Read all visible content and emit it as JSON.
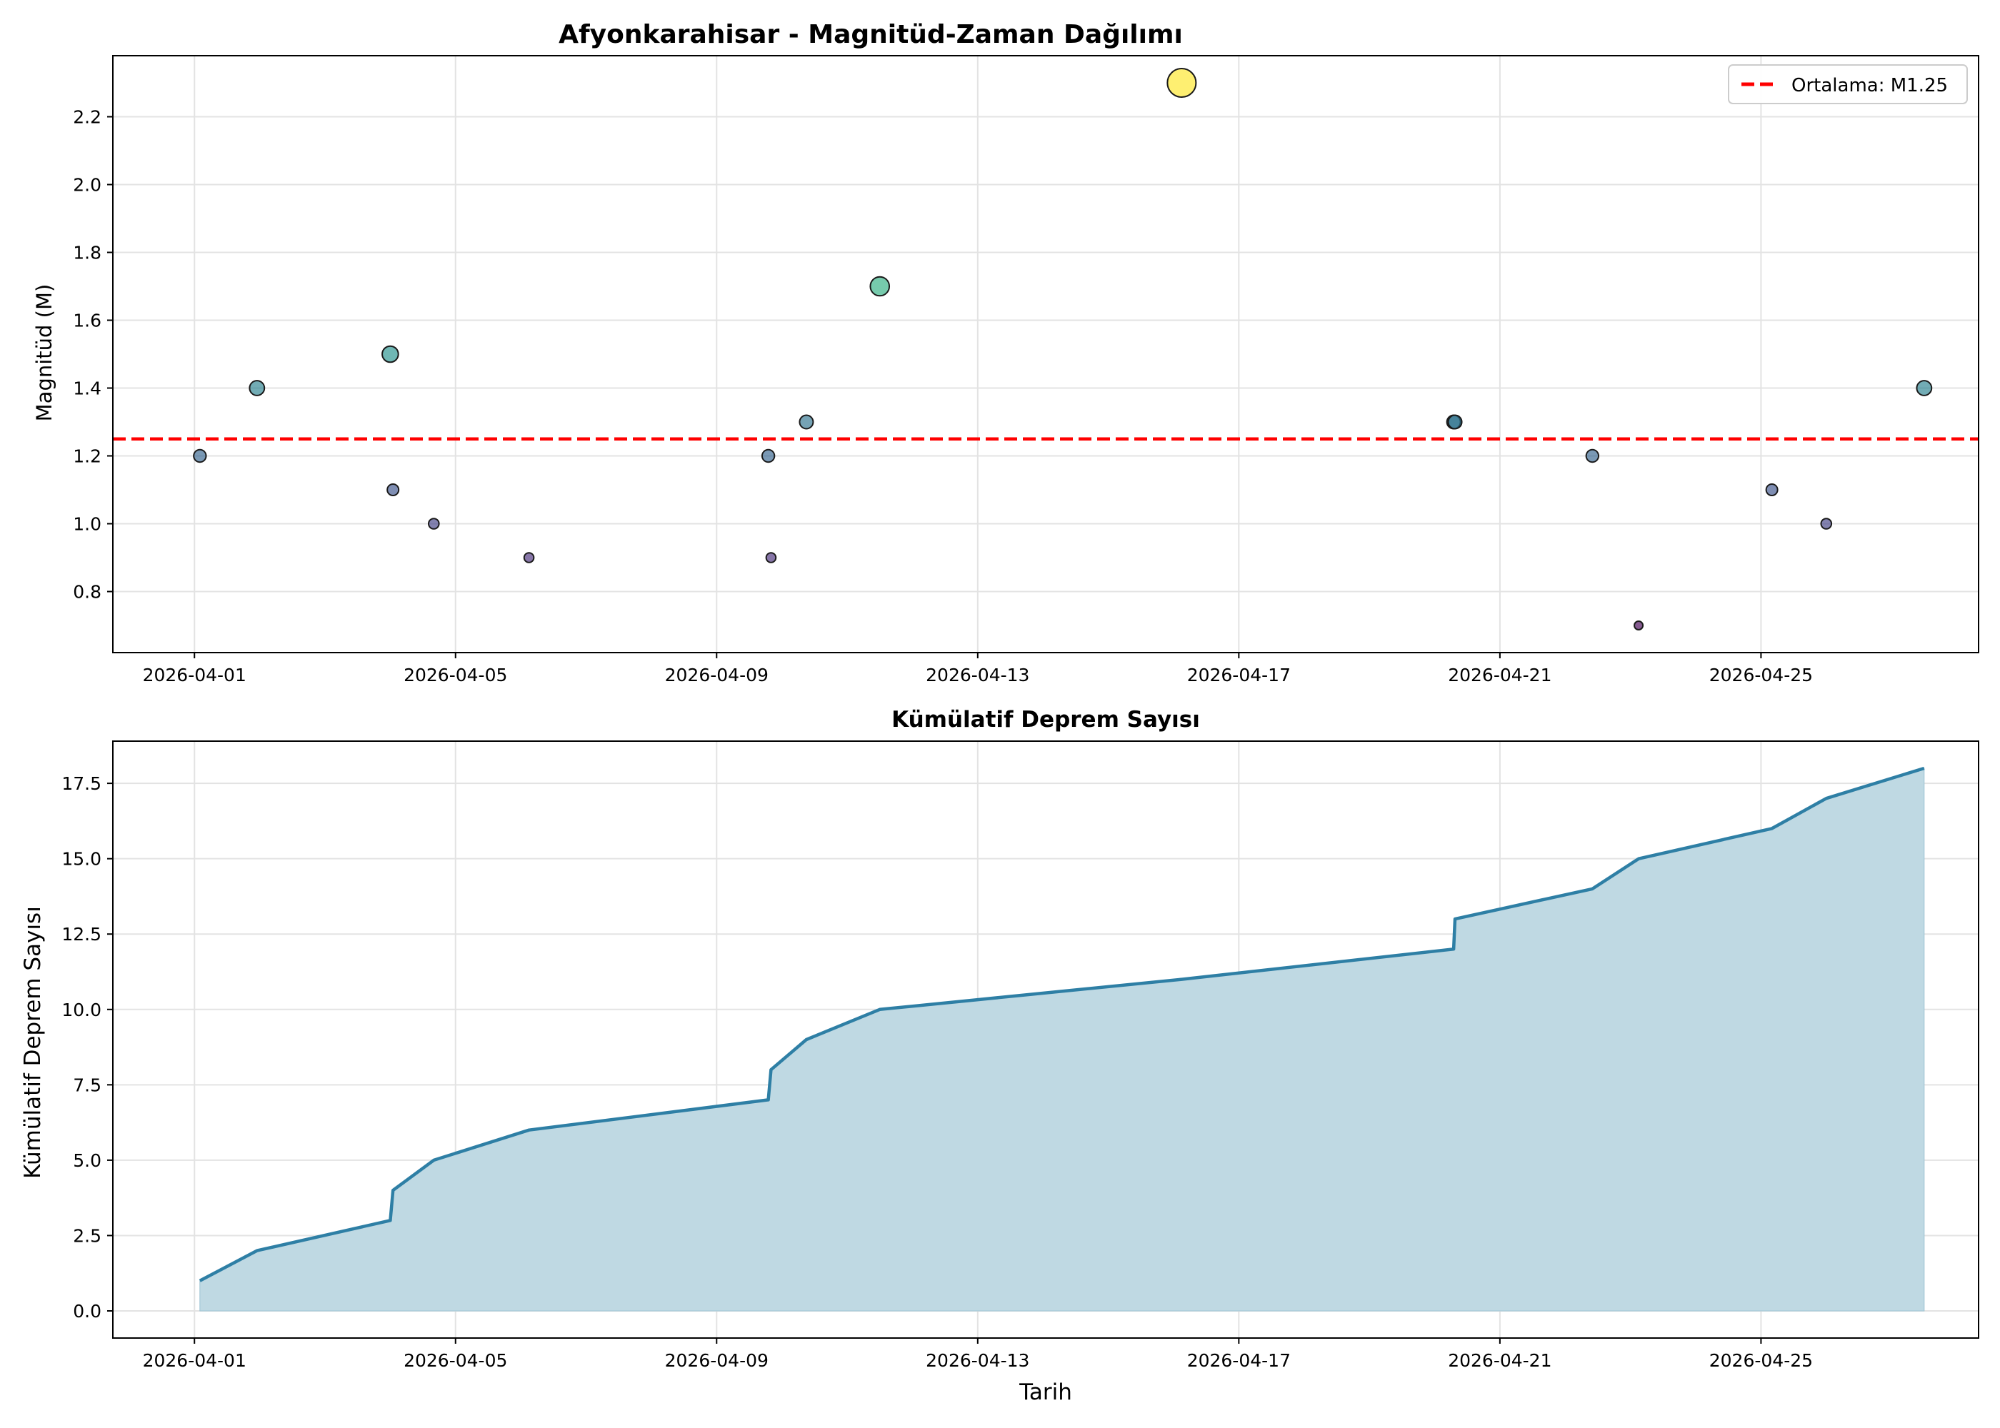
{
  "chart_data": [
    {
      "type": "scatter",
      "title": "Afyonkarahisar - Magnitüd-Zaman Dağılımı",
      "xlabel": "",
      "ylabel": "Magnitüd (M)",
      "x_ticks": [
        "2026-04-01",
        "2026-04-05",
        "2026-04-09",
        "2026-04-13",
        "2026-04-17",
        "2026-04-21",
        "2026-04-25"
      ],
      "y_ticks": [
        "0.8",
        "1.0",
        "1.2",
        "1.4",
        "1.6",
        "1.8",
        "2.0",
        "2.2"
      ],
      "xlim": [
        "2026-03-30T18:00",
        "2026-04-28T08:00"
      ],
      "ylim": [
        0.62,
        2.38
      ],
      "grid": true,
      "legend_position": "top-right",
      "colormap": "viridis",
      "color_range": [
        0.7,
        2.3
      ],
      "points": [
        {
          "x": "2026-04-01T02:00",
          "y": 1.2
        },
        {
          "x": "2026-04-01T23:00",
          "y": 1.4
        },
        {
          "x": "2026-04-04T00:00",
          "y": 1.5
        },
        {
          "x": "2026-04-04T01:00",
          "y": 1.1
        },
        {
          "x": "2026-04-04T16:00",
          "y": 1.0
        },
        {
          "x": "2026-04-06T03:00",
          "y": 0.9
        },
        {
          "x": "2026-04-09T19:00",
          "y": 1.2
        },
        {
          "x": "2026-04-09T20:00",
          "y": 0.9
        },
        {
          "x": "2026-04-10T09:00",
          "y": 1.3
        },
        {
          "x": "2026-04-11T12:00",
          "y": 1.7
        },
        {
          "x": "2026-04-16T03:00",
          "y": 2.3
        },
        {
          "x": "2026-04-20T07:00",
          "y": 1.3
        },
        {
          "x": "2026-04-20T07:30",
          "y": 1.3
        },
        {
          "x": "2026-04-22T10:00",
          "y": 1.2
        },
        {
          "x": "2026-04-23T03:00",
          "y": 0.7
        },
        {
          "x": "2026-04-25T04:00",
          "y": 1.1
        },
        {
          "x": "2026-04-26T00:00",
          "y": 1.0
        },
        {
          "x": "2026-04-27T12:00",
          "y": 1.4
        }
      ],
      "mean_line": {
        "value": 1.25,
        "label": "Ortalama: M1.25",
        "color": "#ff0000"
      }
    },
    {
      "type": "area",
      "title": "Kümülatif Deprem Sayısı",
      "xlabel": "Tarih",
      "ylabel": "Kümülatif Deprem Sayısı",
      "x_ticks": [
        "2026-04-01",
        "2026-04-05",
        "2026-04-09",
        "2026-04-13",
        "2026-04-17",
        "2026-04-21",
        "2026-04-25"
      ],
      "y_ticks": [
        "0.0",
        "2.5",
        "5.0",
        "7.5",
        "10.0",
        "12.5",
        "15.0",
        "17.5"
      ],
      "xlim": [
        "2026-03-30T18:00",
        "2026-04-28T08:00"
      ],
      "ylim": [
        -0.9,
        18.9
      ],
      "grid": true,
      "line_color": "#2e7fa5",
      "fill_color": "#bfd9e3",
      "points": [
        {
          "x": "2026-04-01T02:00",
          "y": 1
        },
        {
          "x": "2026-04-01T23:00",
          "y": 2
        },
        {
          "x": "2026-04-04T00:00",
          "y": 3
        },
        {
          "x": "2026-04-04T01:00",
          "y": 4
        },
        {
          "x": "2026-04-04T16:00",
          "y": 5
        },
        {
          "x": "2026-04-06T03:00",
          "y": 6
        },
        {
          "x": "2026-04-09T19:00",
          "y": 7
        },
        {
          "x": "2026-04-09T20:00",
          "y": 8
        },
        {
          "x": "2026-04-10T09:00",
          "y": 9
        },
        {
          "x": "2026-04-11T12:00",
          "y": 10
        },
        {
          "x": "2026-04-16T03:00",
          "y": 11
        },
        {
          "x": "2026-04-20T07:00",
          "y": 12
        },
        {
          "x": "2026-04-20T07:30",
          "y": 13
        },
        {
          "x": "2026-04-22T10:00",
          "y": 14
        },
        {
          "x": "2026-04-23T03:00",
          "y": 15
        },
        {
          "x": "2026-04-25T04:00",
          "y": 16
        },
        {
          "x": "2026-04-26T00:00",
          "y": 17
        },
        {
          "x": "2026-04-27T12:00",
          "y": 18
        }
      ]
    }
  ]
}
